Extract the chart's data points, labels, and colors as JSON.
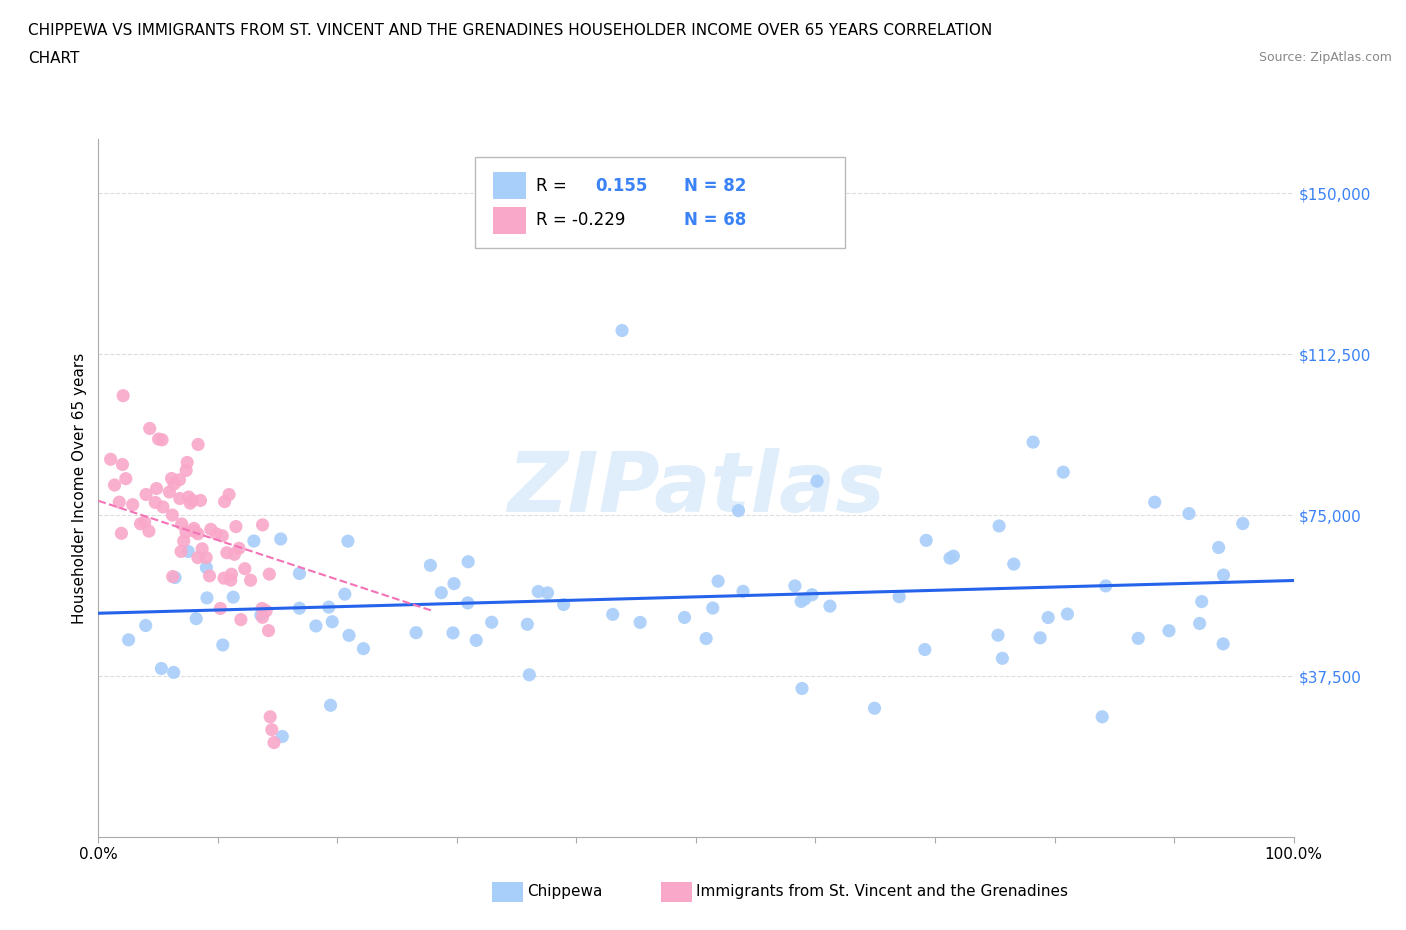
{
  "title_line1": "CHIPPEWA VS IMMIGRANTS FROM ST. VINCENT AND THE GRENADINES HOUSEHOLDER INCOME OVER 65 YEARS CORRELATION",
  "title_line2": "CHART",
  "source_text": "Source: ZipAtlas.com",
  "ylabel": "Householder Income Over 65 years",
  "watermark": "ZIPatlas",
  "ytick_labels": [
    "$37,500",
    "$75,000",
    "$112,500",
    "$150,000"
  ],
  "ytick_values": [
    37500,
    75000,
    112500,
    150000
  ],
  "ymin": 0,
  "ymax": 162500,
  "xmin": 0.0,
  "xmax": 1.0,
  "blue_color": "#A8CEFA",
  "pink_color": "#F9A8C9",
  "blue_line_color": "#2563EB",
  "pink_line_color": "#F472B6",
  "blue_R": 0.155,
  "pink_R": -0.229,
  "blue_N": 82,
  "pink_N": 68,
  "ytick_color": "#3B82F6",
  "grid_color": "#DDDDDD",
  "watermark_color": "#C8E0F8"
}
